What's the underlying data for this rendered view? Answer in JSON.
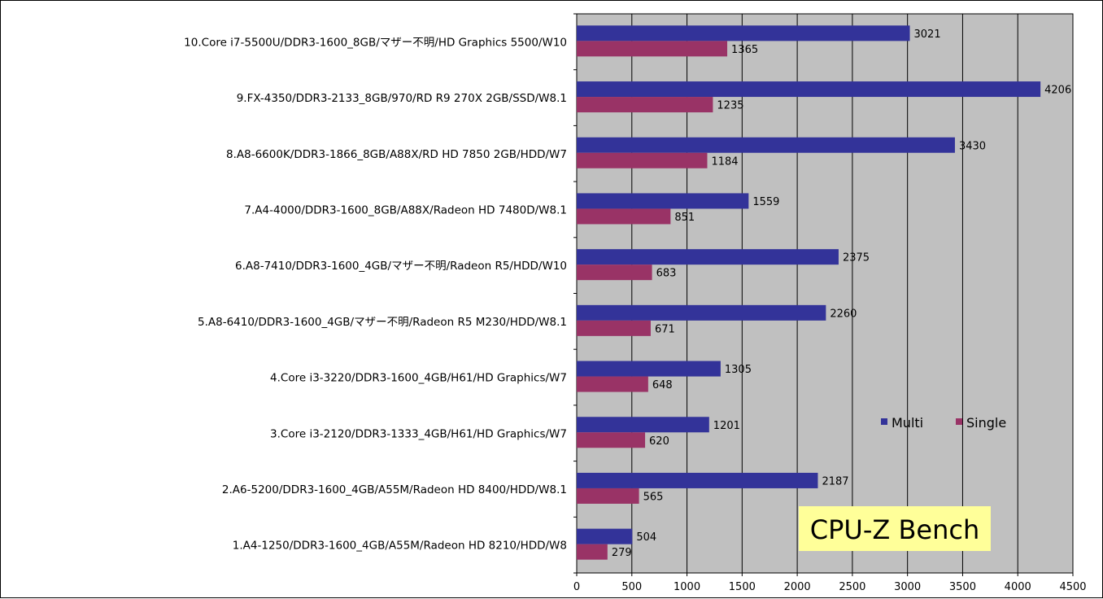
{
  "chart_data": {
    "type": "bar",
    "orientation": "horizontal",
    "title": "CPU-Z Bench",
    "categories": [
      "10.Core i7-5500U/DDR3-1600_8GB/マザー不明/HD Graphics 5500/W10",
      "9.FX-4350/DDR3-2133_8GB/970/RD R9 270X 2GB/SSD/W8.1",
      "8.A8-6600K/DDR3-1866_8GB/A88X/RD HD 7850 2GB/HDD/W7",
      "7.A4-4000/DDR3-1600_8GB/A88X/Radeon HD 7480D/W8.1",
      "6.A8-7410/DDR3-1600_4GB/マザー不明/Radeon R5/HDD/W10",
      "5.A8-6410/DDR3-1600_4GB/マザー不明/Radeon R5 M230/HDD/W8.1",
      "4.Core i3-3220/DDR3-1600_4GB/H61/HD Graphics/W7",
      "3.Core i3-2120/DDR3-1333_4GB/H61/HD Graphics/W7",
      "2.A6-5200/DDR3-1600_4GB/A55M/Radeon HD 8400/HDD/W8.1",
      "1.A4-1250/DDR3-1600_4GB/A55M/Radeon HD 8210/HDD/W8"
    ],
    "series": [
      {
        "name": "Multi",
        "color": "#333399",
        "values": [
          3021,
          4206,
          3430,
          1559,
          2375,
          2260,
          1305,
          1201,
          2187,
          504
        ]
      },
      {
        "name": "Single",
        "color": "#993366",
        "values": [
          1365,
          1235,
          1184,
          851,
          683,
          671,
          648,
          620,
          565,
          279
        ]
      }
    ],
    "xlim": [
      0,
      4500
    ],
    "xticks": [
      0,
      500,
      1000,
      1500,
      2000,
      2500,
      3000,
      3500,
      4000,
      4500
    ],
    "xlabel": "",
    "ylabel": "",
    "grid": true,
    "plot_background": "#c0c0c0",
    "title_background": "#ffff99",
    "legend_position": "right"
  }
}
